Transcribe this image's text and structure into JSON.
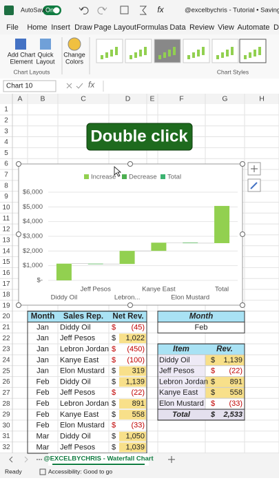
{
  "title_bar": {
    "autosave": "AutoSave",
    "toggle": "On",
    "document": "@excelbychris - Tutorial • Saving..."
  },
  "menu": [
    "File",
    "Home",
    "Insert",
    "Draw",
    "Page Layout",
    "Formulas",
    "Data",
    "Review",
    "View",
    "Automate",
    "D"
  ],
  "ribbon": {
    "add_chart_element": [
      "Add Chart",
      "Element"
    ],
    "quick_layout": [
      "Quick",
      "Layout"
    ],
    "chart_layouts": "Chart Layouts",
    "change_colors": [
      "Change",
      "Colors"
    ],
    "chart_styles": "Chart Styles"
  },
  "formula_bar": {
    "name_box": "Chart 10",
    "fx": "fx"
  },
  "columns": [
    "A",
    "B",
    "C",
    "D",
    "E",
    "F",
    "G",
    "H"
  ],
  "rows": [
    1,
    2,
    3,
    4,
    5,
    6,
    7,
    8,
    9,
    10,
    11,
    12,
    13,
    14,
    15,
    16,
    17,
    18,
    19,
    20,
    21,
    22,
    23,
    24,
    25,
    26,
    27,
    28,
    29,
    30,
    31,
    32
  ],
  "callout": "Double click",
  "chart": {
    "type": "waterfall",
    "legend": [
      {
        "name": "Increase",
        "color": "#92d050"
      },
      {
        "name": "Decrease",
        "color": "#4caf50"
      },
      {
        "name": "Total",
        "color": "#3cb371"
      }
    ],
    "categories": [
      "Diddy Oil",
      "Jeff Pesos",
      "Lebron...",
      "Kanye East",
      "Elon Mustard",
      "Total"
    ],
    "values": [
      1139,
      -22,
      891,
      558,
      -33,
      2533
    ],
    "ylim": [
      0,
      6000
    ],
    "yticks": [
      {
        "value": 0,
        "label": "$-"
      },
      {
        "value": 1000,
        "label": "$1,000"
      },
      {
        "value": 2000,
        "label": "$2,000"
      },
      {
        "value": 3000,
        "label": "$3,000"
      },
      {
        "value": 4000,
        "label": "$4,000"
      },
      {
        "value": 5000,
        "label": "$5,000"
      },
      {
        "value": 6000,
        "label": "$6,000"
      }
    ],
    "grid": true
  },
  "sales_table": {
    "currency": "$",
    "headers": [
      "Month",
      "Sales Rep.",
      "Net Rev."
    ],
    "rows": [
      [
        "Jan",
        "Diddy Oil",
        "(45)"
      ],
      [
        "Jan",
        "Jeff Pesos",
        "1,022"
      ],
      [
        "Jan",
        "Lebron Jordan",
        "(450)"
      ],
      [
        "Jan",
        "Kanye East",
        "(100)"
      ],
      [
        "Jan",
        "Elon Mustard",
        "319"
      ],
      [
        "Feb",
        "Diddy Oil",
        "1,139"
      ],
      [
        "Feb",
        "Jeff Pesos",
        "(22)"
      ],
      [
        "Feb",
        "Lebron Jordan",
        "891"
      ],
      [
        "Feb",
        "Kanye East",
        "558"
      ],
      [
        "Feb",
        "Elon Mustard",
        "(33)"
      ],
      [
        "Mar",
        "Diddy Oil",
        "1,050"
      ],
      [
        "Mar",
        "Jeff Pesos",
        "1,039"
      ]
    ]
  },
  "month_box": {
    "header": "Month",
    "value": "Feb"
  },
  "summary_table": {
    "headers": [
      "Item",
      "Rev."
    ],
    "rows": [
      [
        "Diddy Oil",
        "1,139"
      ],
      [
        "Jeff Pesos",
        "(22)"
      ],
      [
        "Lebron Jordan",
        "891"
      ],
      [
        "Kanye East",
        "558"
      ],
      [
        "Elon Mustard",
        "(33)"
      ]
    ],
    "total": [
      "Total",
      "2,533"
    ]
  },
  "sheet_tab": "@EXCELBYCHRIS - Waterfall Chart",
  "status_bar": {
    "ready": "Ready",
    "accessibility": "Accessibility: Good to go"
  }
}
